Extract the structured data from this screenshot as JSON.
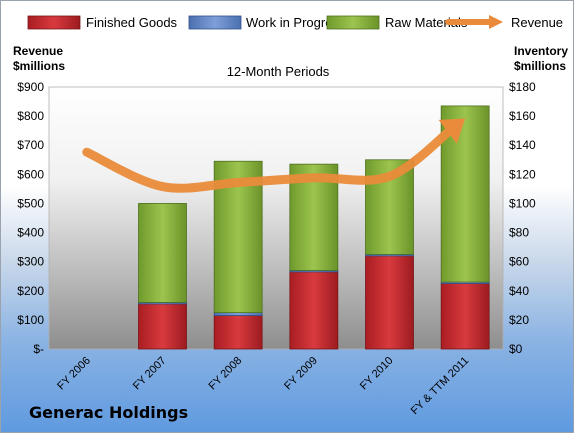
{
  "company": "Generac Holdings",
  "chart_data": {
    "type": "bar",
    "title": "12-Month Periods",
    "categories": [
      "FY 2006",
      "FY 2007",
      "FY 2008",
      "FY 2009",
      "FY 2010",
      "FY & TTM 2011"
    ],
    "left_axis": {
      "label_line1": "Revenue",
      "label_line2": "$millions",
      "range": [
        0,
        900
      ],
      "ticks": [
        "$-",
        "$100",
        "$200",
        "$300",
        "$400",
        "$500",
        "$600",
        "$700",
        "$800",
        "$900"
      ]
    },
    "right_axis": {
      "label_line1": "Inventory",
      "label_line2": "$millions",
      "range": [
        0,
        180
      ],
      "ticks": [
        "$0",
        "$20",
        "$40",
        "$60",
        "$80",
        "$100",
        "$120",
        "$140",
        "$160",
        "$180"
      ]
    },
    "series": [
      {
        "name": "Finished Goods",
        "type": "stacked-bar",
        "axis": "right",
        "color": "#c0282c",
        "values": [
          null,
          31,
          23,
          53,
          64,
          45
        ]
      },
      {
        "name": "Work in Progress",
        "type": "stacked-bar",
        "axis": "right",
        "color": "#5b7fc0",
        "values": [
          null,
          1,
          2,
          1,
          1,
          1
        ]
      },
      {
        "name": "Raw Materials",
        "type": "stacked-bar",
        "axis": "right",
        "color": "#8db33f",
        "values": [
          null,
          68,
          104,
          73,
          65,
          121
        ]
      },
      {
        "name": "Revenue",
        "type": "line",
        "axis": "left",
        "color": "#e98b3a",
        "values": [
          676,
          558,
          572,
          588,
          593,
          792
        ]
      }
    ],
    "legend_position": "top",
    "grid": false
  }
}
